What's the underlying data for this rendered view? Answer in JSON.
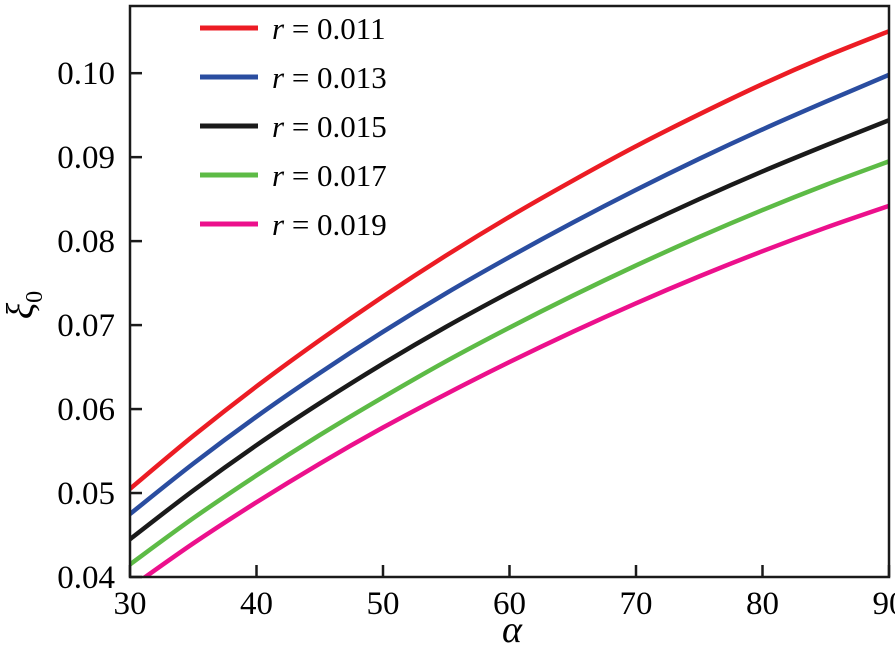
{
  "figure": {
    "background": "#ffffff",
    "frame_color": "#1a1a1a"
  },
  "chart_data": {
    "type": "line",
    "title": "",
    "xlabel": "α",
    "ylabel": "ξ",
    "ylabel_sub": "0",
    "xlim": [
      30,
      90
    ],
    "ylim": [
      0.04,
      0.108
    ],
    "x_ticks": [
      30,
      40,
      50,
      60,
      70,
      80,
      90
    ],
    "y_ticks": [
      0.04,
      0.05,
      0.06,
      0.07,
      0.08,
      0.09,
      0.1
    ],
    "grid": false,
    "legend_position": "upper-left-inside",
    "x": [
      30,
      35,
      40,
      45,
      50,
      55,
      60,
      65,
      70,
      75,
      80,
      85,
      90
    ],
    "series": [
      {
        "name": "r = 0.011",
        "color": "#ec1c24",
        "values": [
          0.0505,
          0.0568,
          0.0627,
          0.0682,
          0.0734,
          0.0783,
          0.0829,
          0.0872,
          0.0913,
          0.0951,
          0.0987,
          0.102,
          0.105
        ]
      },
      {
        "name": "r = 0.013",
        "color": "#2a4da0",
        "values": [
          0.0475,
          0.0535,
          0.0591,
          0.0643,
          0.0692,
          0.0738,
          0.0781,
          0.0822,
          0.0861,
          0.0898,
          0.0933,
          0.0966,
          0.0998
        ]
      },
      {
        "name": "r = 0.015",
        "color": "#1a1a1a",
        "values": [
          0.0445,
          0.0503,
          0.0557,
          0.0607,
          0.0654,
          0.0698,
          0.0739,
          0.0778,
          0.0815,
          0.085,
          0.0883,
          0.0914,
          0.0944
        ]
      },
      {
        "name": "r = 0.017",
        "color": "#5dbb46",
        "values": [
          0.0415,
          0.047,
          0.0521,
          0.0569,
          0.0614,
          0.0657,
          0.0697,
          0.0735,
          0.0771,
          0.0805,
          0.0837,
          0.0867,
          0.0895
        ]
      },
      {
        "name": "r = 0.019",
        "color": "#ec108c",
        "values": [
          0.0387,
          0.044,
          0.0489,
          0.0535,
          0.0578,
          0.0618,
          0.0656,
          0.0692,
          0.0726,
          0.0758,
          0.0788,
          0.0816,
          0.0842
        ]
      }
    ]
  }
}
